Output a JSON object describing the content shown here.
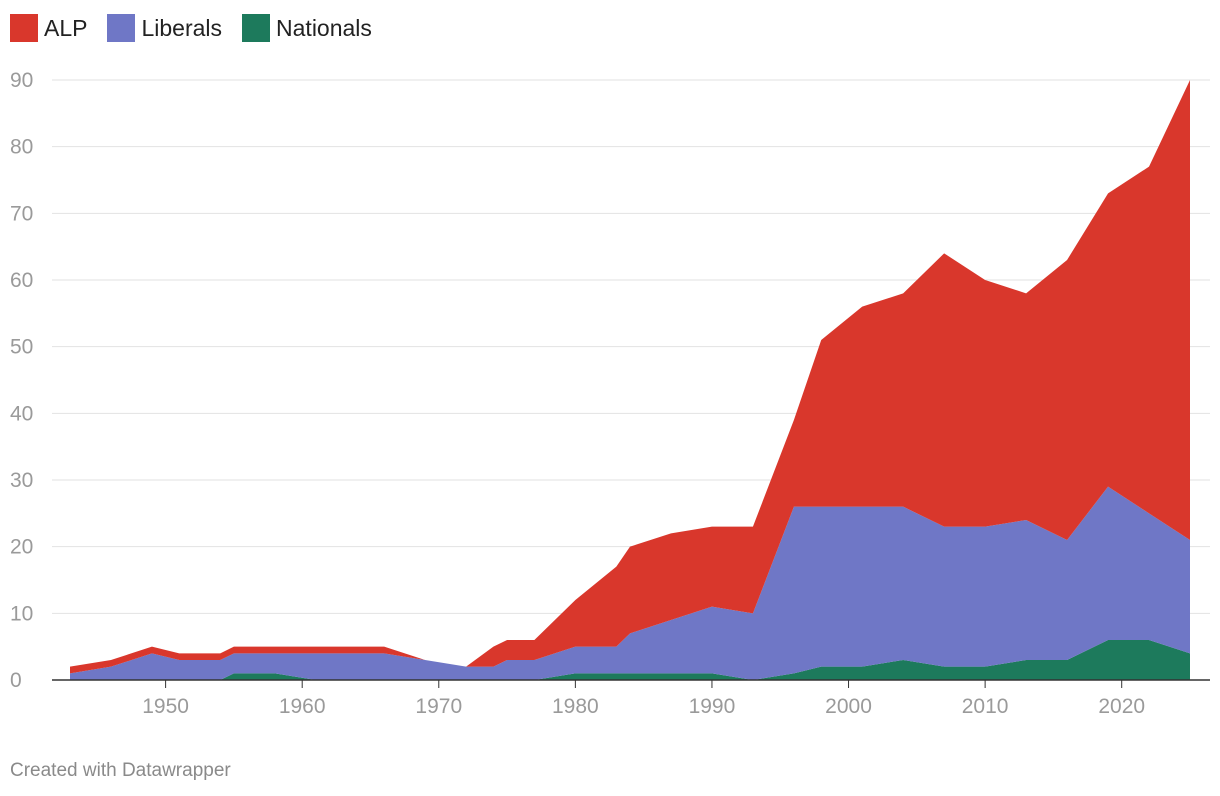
{
  "chart_data": {
    "type": "area",
    "stacked": true,
    "title": "",
    "xlabel": "",
    "ylabel": "",
    "xlim": [
      1943,
      2025
    ],
    "ylim": [
      0,
      90
    ],
    "y_ticks": [
      0,
      10,
      20,
      30,
      40,
      50,
      60,
      70,
      80,
      90
    ],
    "x_ticks": [
      1950,
      1960,
      1970,
      1980,
      1990,
      2000,
      2010,
      2020
    ],
    "grid": "horizontal",
    "legend_position": "top-left",
    "x": [
      1943,
      1946,
      1949,
      1951,
      1954,
      1955,
      1958,
      1961,
      1963,
      1966,
      1969,
      1972,
      1974,
      1975,
      1977,
      1980,
      1983,
      1984,
      1987,
      1990,
      1993,
      1996,
      1998,
      2001,
      2004,
      2007,
      2010,
      2013,
      2016,
      2019,
      2022,
      2025
    ],
    "series": [
      {
        "name": "Nationals",
        "color": "#1d7a5c",
        "values": [
          0,
          0,
          0,
          0,
          0,
          1,
          1,
          0,
          0,
          0,
          0,
          0,
          0,
          0,
          0,
          1,
          1,
          1,
          1,
          1,
          0,
          1,
          2,
          2,
          3,
          2,
          2,
          3,
          3,
          6,
          6,
          4
        ]
      },
      {
        "name": "Liberals",
        "color": "#6f77c6",
        "values": [
          1,
          2,
          4,
          3,
          3,
          3,
          3,
          4,
          4,
          4,
          3,
          2,
          2,
          3,
          3,
          4,
          4,
          6,
          8,
          10,
          10,
          25,
          24,
          24,
          23,
          21,
          21,
          21,
          18,
          23,
          19,
          17
        ]
      },
      {
        "name": "ALP",
        "color": "#d9372c",
        "values": [
          1,
          1,
          1,
          1,
          1,
          1,
          1,
          1,
          1,
          1,
          0,
          0,
          3,
          3,
          3,
          7,
          12,
          13,
          13,
          12,
          13,
          13,
          25,
          30,
          32,
          41,
          37,
          34,
          42,
          44,
          52,
          69
        ]
      }
    ]
  },
  "legend": {
    "items": [
      {
        "label": "ALP",
        "color": "#d9372c"
      },
      {
        "label": "Liberals",
        "color": "#6f77c6"
      },
      {
        "label": "Nationals",
        "color": "#1d7a5c"
      }
    ]
  },
  "footer": {
    "credit": "Created with Datawrapper"
  }
}
